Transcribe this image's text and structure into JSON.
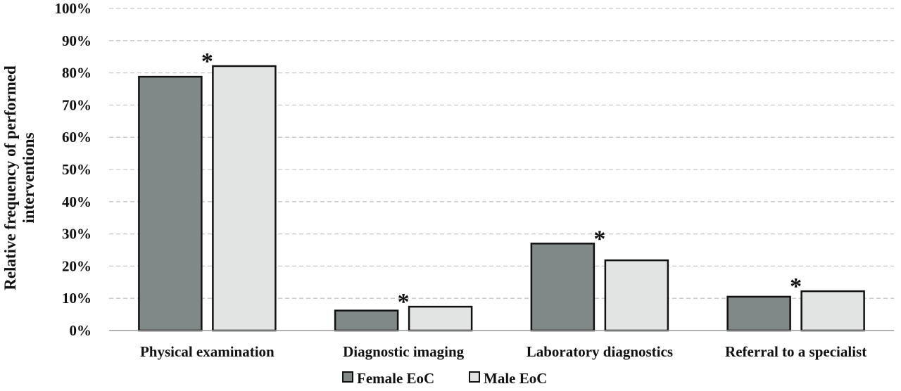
{
  "chart_data": {
    "type": "bar",
    "title": "",
    "xlabel": "",
    "ylabel": "Relative frequency of performed interventions",
    "ylabel_lines": [
      "Relative frequency of performed",
      "interventions"
    ],
    "ylim": [
      0,
      100
    ],
    "y_unit": "%",
    "yticks": [
      "0%",
      "10%",
      "20%",
      "30%",
      "40%",
      "50%",
      "60%",
      "70%",
      "80%",
      "90%",
      "100%"
    ],
    "grid": true,
    "legend_position": "bottom-center",
    "categories": [
      "Physical examination",
      "Diagnostic imaging",
      "Laboratory diagnostics",
      "Referral to a specialist"
    ],
    "series": [
      {
        "name": "Female EoC",
        "color": "#808888",
        "values": [
          78.8,
          6.2,
          27.0,
          10.5
        ]
      },
      {
        "name": "Male EoC",
        "color": "#e2e4e4",
        "values": [
          82.1,
          7.4,
          21.8,
          12.2
        ]
      }
    ],
    "annotations": [
      {
        "category": "Physical examination",
        "text": "*"
      },
      {
        "category": "Diagnostic imaging",
        "text": "*"
      },
      {
        "category": "Laboratory diagnostics",
        "text": "*"
      },
      {
        "category": "Referral to a specialist",
        "text": "*"
      }
    ]
  }
}
